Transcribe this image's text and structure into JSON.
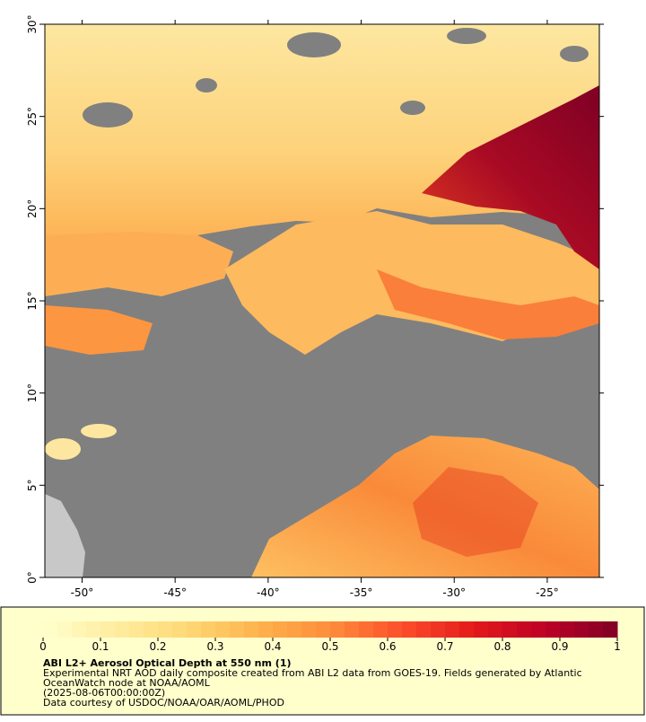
{
  "map": {
    "xlim": [
      -52,
      -22.2
    ],
    "ylim": [
      0,
      30
    ],
    "xticks": [
      {
        "value": -50,
        "label": "-50°"
      },
      {
        "value": -45,
        "label": "-45°"
      },
      {
        "value": -40,
        "label": "-40°"
      },
      {
        "value": -35,
        "label": "-35°"
      },
      {
        "value": -30,
        "label": "-30°"
      },
      {
        "value": -25,
        "label": "-25°"
      }
    ],
    "yticks": [
      {
        "value": 0,
        "label": "0°"
      },
      {
        "value": 5,
        "label": "5°"
      },
      {
        "value": 10,
        "label": "10°"
      },
      {
        "value": 15,
        "label": "15°"
      },
      {
        "value": 20,
        "label": "20°"
      },
      {
        "value": 25,
        "label": "25°"
      },
      {
        "value": 30,
        "label": "30°"
      }
    ]
  },
  "colorbar": {
    "range": [
      0,
      1
    ],
    "ticks": [
      0,
      0.1,
      0.2,
      0.3,
      0.4,
      0.5,
      0.6,
      0.7,
      0.8,
      0.9,
      1
    ],
    "colors": [
      "#ffffcc",
      "#ffeda0",
      "#fed976",
      "#feb24c",
      "#fd8d3c",
      "#fc4e2a",
      "#e31a1c",
      "#bd0026",
      "#800026"
    ]
  },
  "legend": {
    "title": "ABI L2+ Aerosol Optical Depth at 550 nm (1)",
    "lines": [
      "Experimental NRT AOD daily composite created from ABI L2 data from GOES-19. Fields generated by Atlantic",
      "OceanWatch node at NOAA/AOML",
      "(2025-08-06T00:00:00Z)",
      "Data courtesy of USDOC/NOAA/OAR/AOML/PHOD"
    ]
  }
}
